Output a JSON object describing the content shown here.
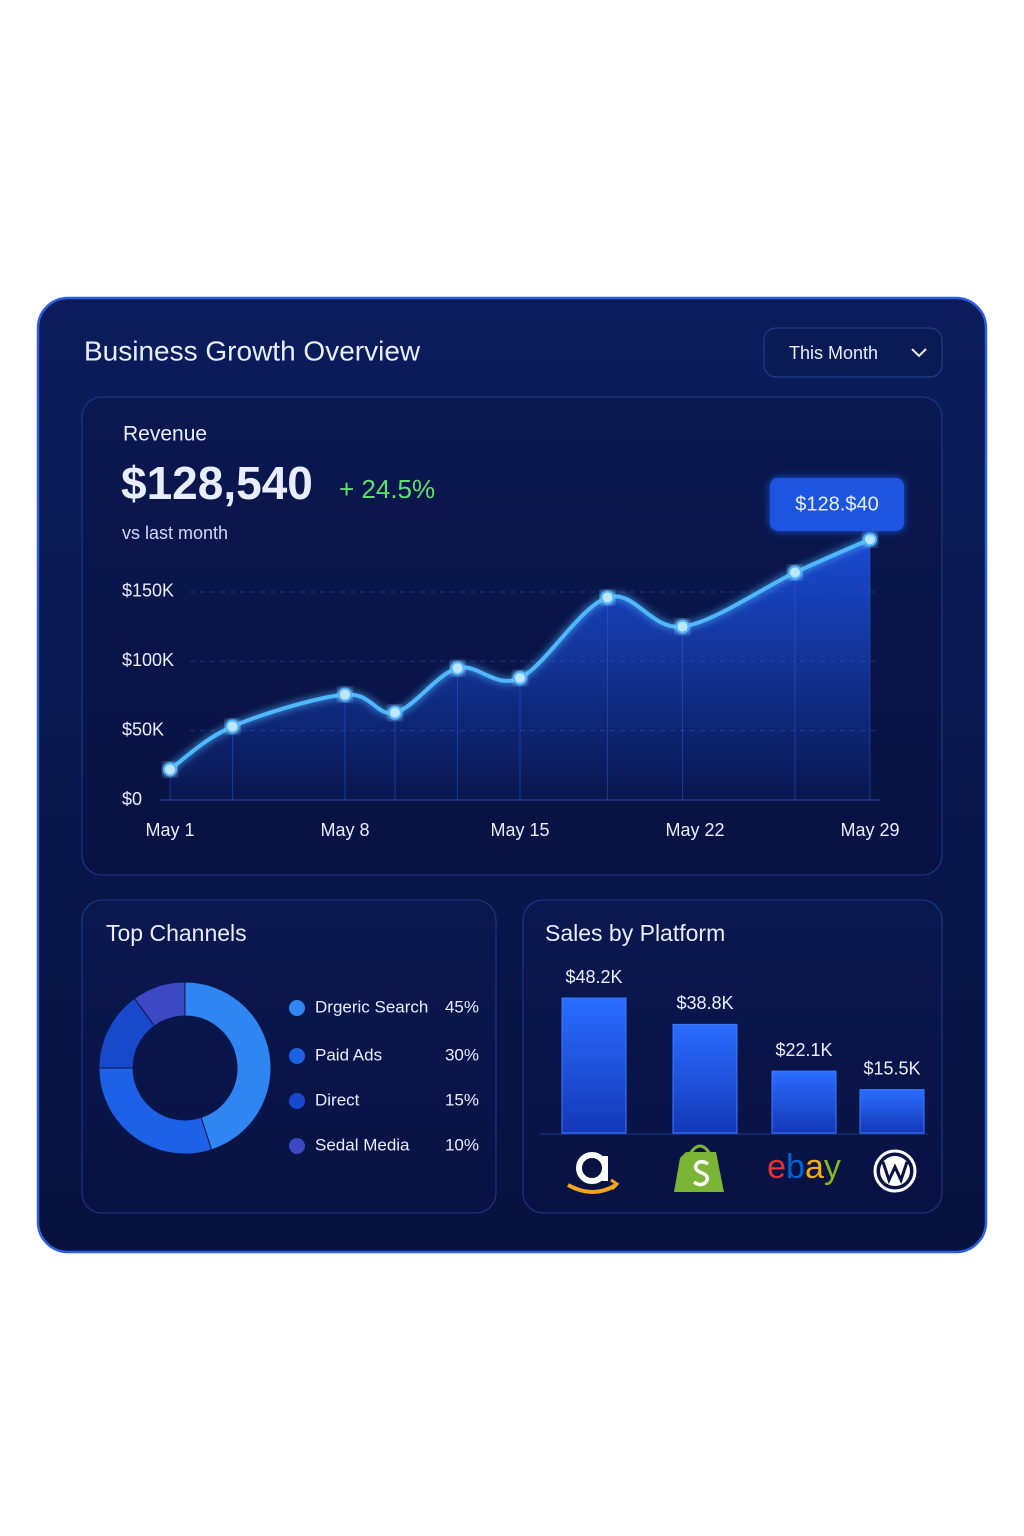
{
  "header": {
    "title": "Business Growth Overview",
    "period": "This Month"
  },
  "chart_data": [
    {
      "type": "line",
      "title": "Revenue",
      "headline": "$128,540",
      "change": "+ 24.5%",
      "note": "vs last month",
      "callout": "$128.$40",
      "x": [
        1,
        3.5,
        8,
        10,
        12.5,
        15,
        18.5,
        21.5,
        26,
        29
      ],
      "series": [
        {
          "color": "#4fb8ff",
          "values": [
            22,
            53,
            76,
            63,
            95,
            88,
            146,
            125,
            164,
            188
          ]
        }
      ],
      "xlim": [
        1,
        29
      ],
      "xticks": [
        {
          "value": 1,
          "label": "May 1"
        },
        {
          "value": 8,
          "label": "May 8"
        },
        {
          "value": 15,
          "label": "May 15"
        },
        {
          "value": 22,
          "label": "May 22"
        },
        {
          "value": 29,
          "label": "May 29"
        }
      ],
      "ylim": [
        0,
        200
      ],
      "yticks": [
        {
          "value": 0,
          "label": "$0"
        },
        {
          "value": 50,
          "label": "$50K"
        },
        {
          "value": 100,
          "label": "$100K"
        },
        {
          "value": 150,
          "label": "$150K"
        }
      ],
      "grid": true
    },
    {
      "type": "pie",
      "title": "Top Channels",
      "donut": true,
      "categories": [
        "Drgeric Search",
        "Paid Ads",
        "Direct",
        "Sedal Media"
      ],
      "values": [
        45,
        30,
        15,
        10
      ],
      "value_labels": [
        "45%",
        "30%",
        "15%",
        "10%"
      ],
      "colors": [
        "#2f86f2",
        "#1d62e6",
        "#1848cc",
        "#3d49c4"
      ]
    },
    {
      "type": "bar",
      "title": "Sales by Platform",
      "categories": [
        null,
        null,
        "ebay",
        null
      ],
      "values": [
        48.2,
        38.8,
        22.1,
        15.5
      ],
      "value_labels": [
        "$48.2K",
        "$38.8K",
        "$22.1K",
        "$15.5K"
      ],
      "color": "#1f62f2",
      "ylim": [
        0,
        50
      ]
    }
  ]
}
